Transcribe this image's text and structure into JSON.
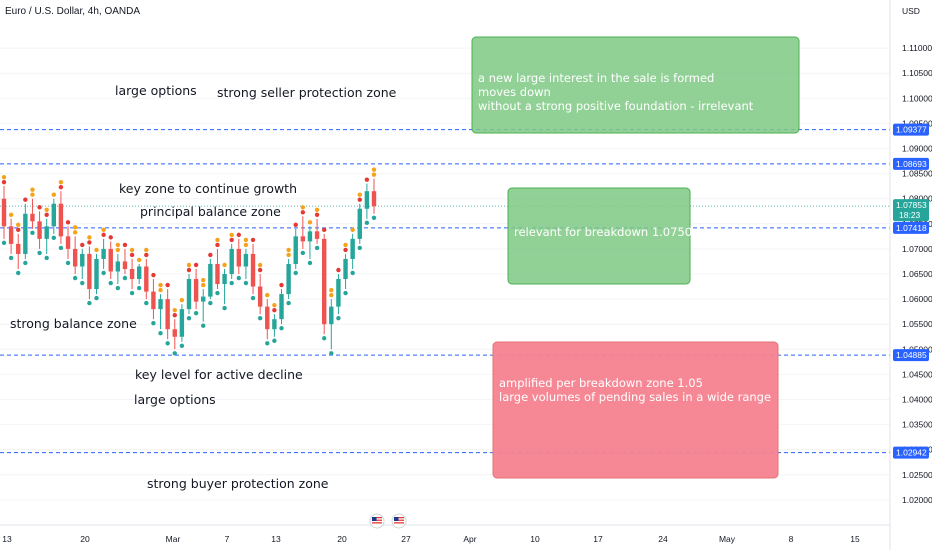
{
  "header": {
    "symbol_title": "Euro / U.S. Dollar, 4h, OANDA",
    "currency": "USD"
  },
  "colors": {
    "level_line": "#2962ff",
    "last_price": "#26a69a",
    "bull": "#26a69a",
    "bear": "#ef5350",
    "dot_red": "#e53935",
    "dot_orange": "#f7a21b",
    "dot_teal": "#26a69a",
    "box_green": "#7ec984",
    "box_green_border": "#4caf50",
    "box_red": "#f6828f",
    "box_red_border": "#e57373"
  },
  "chart_data": {
    "type": "candlestick",
    "ylim": [
      1.015,
      1.116
    ],
    "y_ticks": [
      "1.11000",
      "1.10500",
      "1.10000",
      "1.09500",
      "1.09000",
      "1.08500",
      "1.08000",
      "1.07500",
      "1.07000",
      "1.06500",
      "1.06000",
      "1.05500",
      "1.05000",
      "1.04500",
      "1.04000",
      "1.03500",
      "1.03000",
      "1.02500",
      "1.02000"
    ],
    "x_ticks": [
      "13",
      "20",
      "Mar",
      "7",
      "13",
      "20",
      "27",
      "Apr",
      "10",
      "17",
      "24",
      "May",
      "8",
      "15"
    ],
    "horizontal_levels": [
      {
        "price": 1.09377,
        "label": "1.09377"
      },
      {
        "price": 1.08693,
        "label": "1.08693"
      },
      {
        "price": 1.07418,
        "label": "1.07418"
      },
      {
        "price": 1.04885,
        "label": "1.04885"
      },
      {
        "price": 1.02942,
        "label": "1.02942"
      }
    ],
    "last_price": {
      "price": 1.07853,
      "label": "1.07853",
      "countdown": "18:23"
    },
    "candles": [
      [
        1.08,
        1.0825,
        1.072,
        1.0745
      ],
      [
        1.0745,
        1.076,
        1.069,
        1.071
      ],
      [
        1.071,
        1.073,
        1.066,
        1.069
      ],
      [
        1.069,
        1.079,
        1.068,
        1.077
      ],
      [
        1.077,
        1.08,
        1.074,
        1.0755
      ],
      [
        1.0755,
        1.0775,
        1.07,
        1.072
      ],
      [
        1.072,
        1.076,
        1.069,
        1.0745
      ],
      [
        1.0745,
        1.08,
        1.073,
        1.079
      ],
      [
        1.079,
        1.0815,
        1.071,
        1.0725
      ],
      [
        1.0725,
        1.0745,
        1.068,
        1.07
      ],
      [
        1.07,
        1.0725,
        1.065,
        1.0665
      ],
      [
        1.0665,
        1.07,
        1.064,
        1.069
      ],
      [
        1.069,
        1.0705,
        1.06,
        1.062
      ],
      [
        1.062,
        1.069,
        1.061,
        1.068
      ],
      [
        1.068,
        1.072,
        1.066,
        1.07
      ],
      [
        1.07,
        1.0715,
        1.064,
        1.0655
      ],
      [
        1.0655,
        1.069,
        1.063,
        1.0675
      ],
      [
        1.0675,
        1.07,
        1.065,
        1.066
      ],
      [
        1.066,
        1.068,
        1.062,
        1.064
      ],
      [
        1.064,
        1.067,
        1.063,
        1.0665
      ],
      [
        1.0665,
        1.068,
        1.06,
        1.0615
      ],
      [
        1.0615,
        1.064,
        1.056,
        1.058
      ],
      [
        1.058,
        1.061,
        1.054,
        1.06
      ],
      [
        1.06,
        1.062,
        1.052,
        1.054
      ],
      [
        1.054,
        1.056,
        1.05,
        1.0525
      ],
      [
        1.0525,
        1.059,
        1.0515,
        1.058
      ],
      [
        1.058,
        1.065,
        1.057,
        1.064
      ],
      [
        1.064,
        1.066,
        1.058,
        1.0595
      ],
      [
        1.0595,
        1.062,
        1.0555,
        1.0605
      ],
      [
        1.0605,
        1.068,
        1.06,
        1.067
      ],
      [
        1.067,
        1.07,
        1.062,
        1.063
      ],
      [
        1.063,
        1.066,
        1.059,
        1.065
      ],
      [
        1.065,
        1.071,
        1.064,
        1.07
      ],
      [
        1.07,
        1.072,
        1.065,
        1.0665
      ],
      [
        1.0665,
        1.07,
        1.064,
        1.069
      ],
      [
        1.069,
        1.071,
        1.061,
        1.0625
      ],
      [
        1.0625,
        1.065,
        1.057,
        1.0585
      ],
      [
        1.0585,
        1.06,
        1.052,
        1.054
      ],
      [
        1.054,
        1.057,
        1.0525,
        1.056
      ],
      [
        1.056,
        1.062,
        1.055,
        1.061
      ],
      [
        1.061,
        1.068,
        1.06,
        1.067
      ],
      [
        1.067,
        1.074,
        1.066,
        1.0725
      ],
      [
        1.0725,
        1.0765,
        1.07,
        1.0715
      ],
      [
        1.0715,
        1.0745,
        1.068,
        1.0735
      ],
      [
        1.0735,
        1.076,
        1.071,
        1.072
      ],
      [
        1.072,
        1.073,
        1.053,
        1.055
      ],
      [
        1.055,
        1.06,
        1.05,
        1.0585
      ],
      [
        1.0585,
        1.065,
        1.057,
        1.064
      ],
      [
        1.064,
        1.069,
        1.062,
        1.068
      ],
      [
        1.068,
        1.073,
        1.066,
        1.072
      ],
      [
        1.072,
        1.079,
        1.071,
        1.078
      ],
      [
        1.078,
        1.083,
        1.076,
        1.0815
      ],
      [
        1.0815,
        1.084,
        1.077,
        1.0785
      ]
    ]
  },
  "annotations": {
    "large_options_top": "large options",
    "seller_zone": "strong seller protection zone",
    "key_zone_growth": "key zone to continue growth",
    "principal_balance": "principal balance zone",
    "strong_balance": "strong balance zone",
    "key_level_decline": "key level for active decline",
    "large_options_bottom": "large options",
    "buyer_zone": "strong buyer protection zone"
  },
  "boxes": {
    "top": {
      "line1": "a new large interest in the sale is formed",
      "line2": "moves down",
      "line3": "without a strong positive foundation - irrelevant"
    },
    "middle": {
      "line1": "relevant for breakdown 1.0750"
    },
    "bottom": {
      "line1": "amplified per breakdown zone 1.05",
      "line2": "large volumes of pending sales in a wide range"
    }
  },
  "event_icons": [
    "us-flag-icon",
    "us-flag-icon"
  ]
}
